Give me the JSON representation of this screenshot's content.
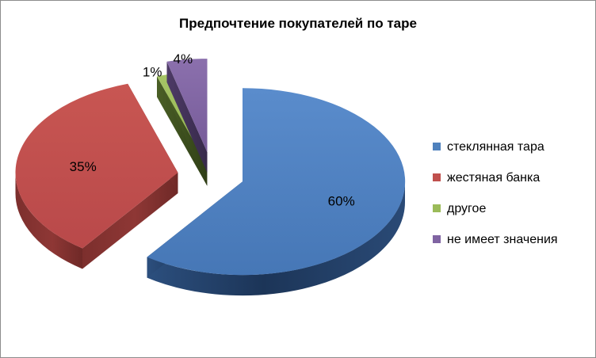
{
  "chart_data": {
    "type": "pie",
    "title": "Предпочтение покупателей по таре",
    "categories": [
      "стеклянная тара",
      "жестяная банка",
      "другое",
      "не имеет значения"
    ],
    "values": [
      60,
      35,
      1,
      4
    ],
    "data_labels": [
      "60%",
      "35%",
      "1%",
      "4%"
    ],
    "colors": [
      "#4F81BD",
      "#C0504D",
      "#9BBB59",
      "#8064A2"
    ],
    "exploded": true,
    "three_d": true,
    "legend_position": "right"
  }
}
